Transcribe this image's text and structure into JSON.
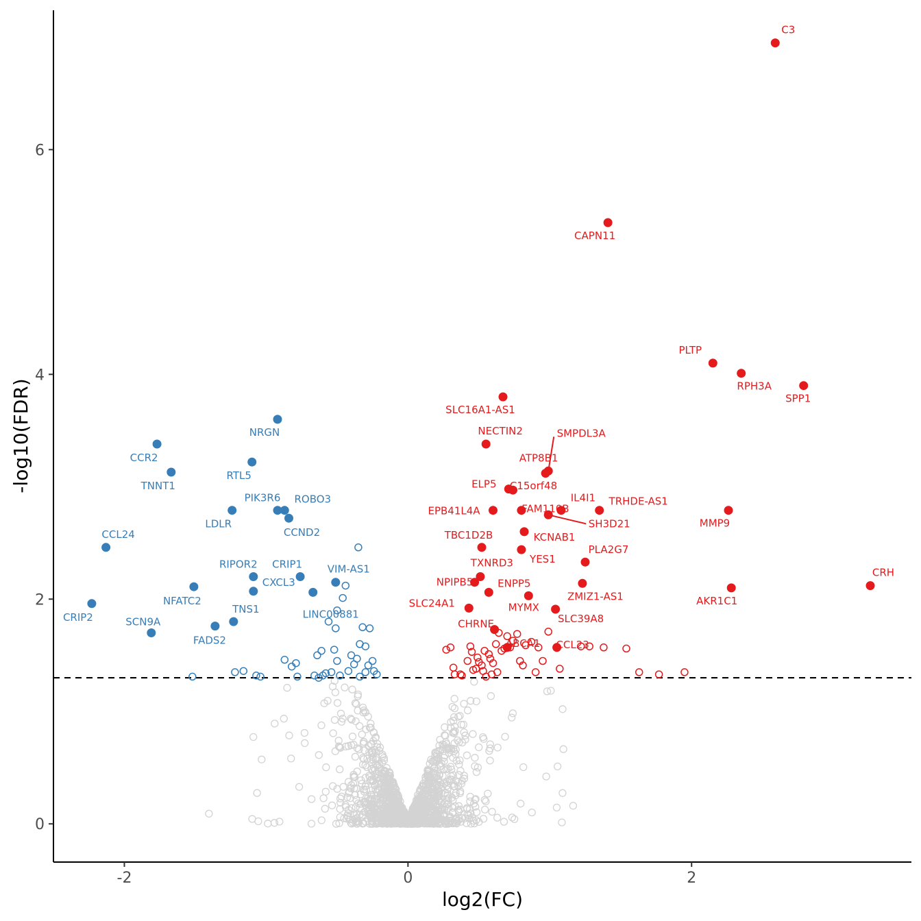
{
  "chart_data": {
    "type": "scatter",
    "title": "",
    "xlabel": "log2(FC)",
    "ylabel": "-log10(FDR)",
    "xlim": [
      -2.5,
      3.55
    ],
    "ylim": [
      -0.34,
      7.24
    ],
    "x_ticks": [
      {
        "value": -2,
        "label": "-2"
      },
      {
        "value": 0,
        "label": "0"
      },
      {
        "value": 2,
        "label": "2"
      }
    ],
    "y_ticks": [
      {
        "value": 0,
        "label": "0"
      },
      {
        "value": 2,
        "label": "2"
      },
      {
        "value": 4,
        "label": "4"
      },
      {
        "value": 6,
        "label": "6"
      }
    ],
    "threshold": {
      "y": 1.3,
      "style": "dashed"
    },
    "grid": false,
    "colors": {
      "up": "#e41a1c",
      "down": "#377eb8",
      "ns": "#d3d3d3",
      "threshold": "#000000"
    },
    "labeled_points": [
      {
        "gene": "C3",
        "x": 2.59,
        "y": 6.95,
        "group": "up"
      },
      {
        "gene": "CAPN11",
        "x": 1.41,
        "y": 5.35,
        "group": "up"
      },
      {
        "gene": "PLTP",
        "x": 2.15,
        "y": 4.1,
        "group": "up"
      },
      {
        "gene": "RPH3A",
        "x": 2.35,
        "y": 4.01,
        "group": "up"
      },
      {
        "gene": "SPP1",
        "x": 2.79,
        "y": 3.9,
        "group": "up"
      },
      {
        "gene": "SLC16A1-AS1",
        "x": 0.67,
        "y": 3.8,
        "group": "up"
      },
      {
        "gene": "NECTIN2",
        "x": 0.55,
        "y": 3.38,
        "group": "up"
      },
      {
        "gene": "SMPDL3A",
        "x": 0.99,
        "y": 3.14,
        "group": "up"
      },
      {
        "gene": "ATP8B1",
        "x": 0.97,
        "y": 3.12,
        "group": "up"
      },
      {
        "gene": "ELP5",
        "x": 0.71,
        "y": 2.98,
        "group": "up"
      },
      {
        "gene": "C15orf48",
        "x": 0.74,
        "y": 2.97,
        "group": "up"
      },
      {
        "gene": "IL4I1",
        "x": 1.08,
        "y": 2.79,
        "group": "up"
      },
      {
        "gene": "TRHDE-AS1",
        "x": 1.35,
        "y": 2.79,
        "group": "up"
      },
      {
        "gene": "EPB41L4A",
        "x": 0.6,
        "y": 2.79,
        "group": "up"
      },
      {
        "gene": "FAM110B",
        "x": 0.8,
        "y": 2.79,
        "group": "up"
      },
      {
        "gene": "SH3D21",
        "x": 0.99,
        "y": 2.75,
        "group": "up"
      },
      {
        "gene": "MMP9",
        "x": 2.26,
        "y": 2.79,
        "group": "up"
      },
      {
        "gene": "TBC1D2B",
        "x": 0.52,
        "y": 2.46,
        "group": "up"
      },
      {
        "gene": "KCNAB1",
        "x": 0.82,
        "y": 2.6,
        "group": "up"
      },
      {
        "gene": "TXNRD3",
        "x": 0.51,
        "y": 2.2,
        "group": "up"
      },
      {
        "gene": "YES1",
        "x": 0.8,
        "y": 2.44,
        "group": "up"
      },
      {
        "gene": "PLA2G7",
        "x": 1.25,
        "y": 2.33,
        "group": "up"
      },
      {
        "gene": "NPIPB5",
        "x": 0.47,
        "y": 2.15,
        "group": "up"
      },
      {
        "gene": "ENPP5",
        "x": 0.57,
        "y": 2.06,
        "group": "up"
      },
      {
        "gene": "ZMIZ1-AS1",
        "x": 1.23,
        "y": 2.14,
        "group": "up"
      },
      {
        "gene": "CRH",
        "x": 3.26,
        "y": 2.12,
        "group": "up"
      },
      {
        "gene": "AKR1C1",
        "x": 2.28,
        "y": 2.1,
        "group": "up"
      },
      {
        "gene": "SLC24A1",
        "x": 0.43,
        "y": 1.92,
        "group": "up"
      },
      {
        "gene": "MYMX",
        "x": 0.85,
        "y": 2.03,
        "group": "up"
      },
      {
        "gene": "SLC39A8",
        "x": 1.04,
        "y": 1.91,
        "group": "up"
      },
      {
        "gene": "CHRNE",
        "x": 0.61,
        "y": 1.73,
        "group": "up"
      },
      {
        "gene": "ABCA1",
        "x": 0.7,
        "y": 1.57,
        "group": "up"
      },
      {
        "gene": "CCL23",
        "x": 1.05,
        "y": 1.57,
        "group": "up"
      },
      {
        "gene": "NRGN",
        "x": -0.92,
        "y": 3.6,
        "group": "down"
      },
      {
        "gene": "CCR2",
        "x": -1.77,
        "y": 3.38,
        "group": "down"
      },
      {
        "gene": "TNNT1",
        "x": -1.67,
        "y": 3.13,
        "group": "down"
      },
      {
        "gene": "RTL5",
        "x": -1.1,
        "y": 3.22,
        "group": "down"
      },
      {
        "gene": "PIK3R6",
        "x": -0.92,
        "y": 2.79,
        "group": "down"
      },
      {
        "gene": "ROBO3",
        "x": -0.87,
        "y": 2.79,
        "group": "down"
      },
      {
        "gene": "LDLR",
        "x": -1.24,
        "y": 2.79,
        "group": "down"
      },
      {
        "gene": "CCND2",
        "x": -0.84,
        "y": 2.72,
        "group": "down"
      },
      {
        "gene": "CCL24",
        "x": -2.13,
        "y": 2.46,
        "group": "down"
      },
      {
        "gene": "RIPOR2",
        "x": -1.09,
        "y": 2.2,
        "group": "down"
      },
      {
        "gene": "CRIP1",
        "x": -0.76,
        "y": 2.2,
        "group": "down"
      },
      {
        "gene": "VIM-AS1",
        "x": -0.51,
        "y": 2.15,
        "group": "down"
      },
      {
        "gene": "CXCL3",
        "x": -1.09,
        "y": 2.07,
        "group": "down"
      },
      {
        "gene": "NFATC2",
        "x": -1.51,
        "y": 2.11,
        "group": "down"
      },
      {
        "gene": "LINC00881",
        "x": -0.67,
        "y": 2.06,
        "group": "down"
      },
      {
        "gene": "CRIP2",
        "x": -2.23,
        "y": 1.96,
        "group": "down"
      },
      {
        "gene": "TNS1",
        "x": -1.23,
        "y": 1.8,
        "group": "down"
      },
      {
        "gene": "SCN9A",
        "x": -1.81,
        "y": 1.7,
        "group": "down"
      },
      {
        "gene": "FADS2",
        "x": -1.36,
        "y": 1.76,
        "group": "down"
      }
    ],
    "sig_open_points": {
      "up": [
        [
          0.27,
          1.55
        ],
        [
          0.32,
          1.39
        ],
        [
          0.37,
          1.33
        ],
        [
          0.42,
          1.45
        ],
        [
          0.44,
          1.58
        ],
        [
          0.45,
          1.53
        ],
        [
          0.48,
          1.38
        ],
        [
          0.49,
          1.48
        ],
        [
          0.5,
          1.44
        ],
        [
          0.52,
          1.41
        ],
        [
          0.53,
          1.36
        ],
        [
          0.54,
          1.54
        ],
        [
          0.55,
          1.31
        ],
        [
          0.57,
          1.51
        ],
        [
          0.58,
          1.47
        ],
        [
          0.6,
          1.43
        ],
        [
          0.62,
          1.6
        ],
        [
          0.63,
          1.35
        ],
        [
          0.64,
          1.7
        ],
        [
          0.66,
          1.54
        ],
        [
          0.68,
          1.56
        ],
        [
          0.72,
          1.57
        ],
        [
          0.74,
          1.63
        ],
        [
          0.77,
          1.69
        ],
        [
          0.79,
          1.45
        ],
        [
          0.81,
          1.41
        ],
        [
          0.83,
          1.59
        ],
        [
          0.87,
          1.62
        ],
        [
          0.9,
          1.35
        ],
        [
          0.92,
          1.57
        ],
        [
          0.95,
          1.45
        ],
        [
          0.99,
          1.71
        ],
        [
          1.07,
          1.38
        ],
        [
          1.22,
          1.58
        ],
        [
          1.28,
          1.58
        ],
        [
          1.38,
          1.57
        ],
        [
          1.54,
          1.56
        ],
        [
          1.63,
          1.35
        ],
        [
          1.77,
          1.33
        ],
        [
          1.95,
          1.35
        ],
        [
          0.33,
          1.33
        ],
        [
          0.38,
          1.32
        ],
        [
          0.46,
          1.37
        ],
        [
          0.59,
          1.33
        ],
        [
          0.7,
          1.67
        ],
        [
          0.3,
          1.57
        ]
      ],
      "down": [
        [
          -1.52,
          1.31
        ],
        [
          -1.22,
          1.35
        ],
        [
          -1.16,
          1.36
        ],
        [
          -1.07,
          1.32
        ],
        [
          -1.04,
          1.31
        ],
        [
          -0.87,
          1.46
        ],
        [
          -0.82,
          1.4
        ],
        [
          -0.79,
          1.43
        ],
        [
          -0.78,
          1.31
        ],
        [
          -0.66,
          1.32
        ],
        [
          -0.64,
          1.5
        ],
        [
          -0.63,
          1.3
        ],
        [
          -0.61,
          1.54
        ],
        [
          -0.6,
          1.32
        ],
        [
          -0.58,
          1.34
        ],
        [
          -0.56,
          1.8
        ],
        [
          -0.54,
          1.35
        ],
        [
          -0.52,
          1.55
        ],
        [
          -0.5,
          1.45
        ],
        [
          -0.48,
          1.32
        ],
        [
          -0.46,
          2.01
        ],
        [
          -0.44,
          2.12
        ],
        [
          -0.42,
          1.36
        ],
        [
          -0.4,
          1.5
        ],
        [
          -0.38,
          1.42
        ],
        [
          -0.36,
          1.47
        ],
        [
          -0.34,
          1.6
        ],
        [
          -0.32,
          1.75
        ],
        [
          -0.3,
          1.58
        ],
        [
          -0.28,
          1.41
        ],
        [
          -0.27,
          1.74
        ],
        [
          -0.25,
          1.45
        ],
        [
          -0.24,
          1.36
        ],
        [
          -0.22,
          1.33
        ],
        [
          -0.35,
          2.46
        ],
        [
          -0.5,
          1.9
        ],
        [
          -0.51,
          1.74
        ],
        [
          -0.34,
          1.31
        ],
        [
          -0.3,
          1.35
        ]
      ]
    }
  }
}
